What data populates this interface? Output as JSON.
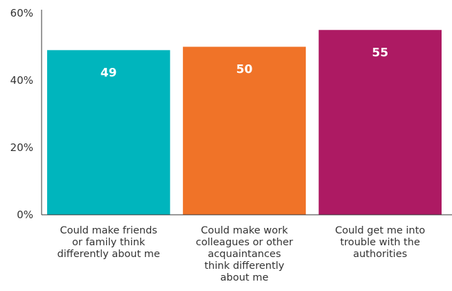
{
  "chart_data": {
    "type": "bar",
    "title": "",
    "xlabel": "",
    "ylabel": "",
    "ylim": [
      0,
      60
    ],
    "yticks": [
      "0%",
      "20%",
      "40%",
      "60%"
    ],
    "yticks_values": [
      0,
      20,
      40,
      60
    ],
    "grid": false,
    "categories": [
      [
        "Could make friends",
        "or family think",
        "differently about me"
      ],
      [
        "Could make work",
        "colleagues or other",
        "acquaintances",
        "think differently",
        "about me"
      ],
      [
        "Could get me into",
        "trouble with the",
        "authorities"
      ]
    ],
    "values": [
      49,
      50,
      55
    ],
    "data_labels": [
      "49",
      "50",
      "55"
    ],
    "colors": [
      "#00b5bd",
      "#f07328",
      "#ad1a63"
    ],
    "axis_color": "#333333"
  }
}
